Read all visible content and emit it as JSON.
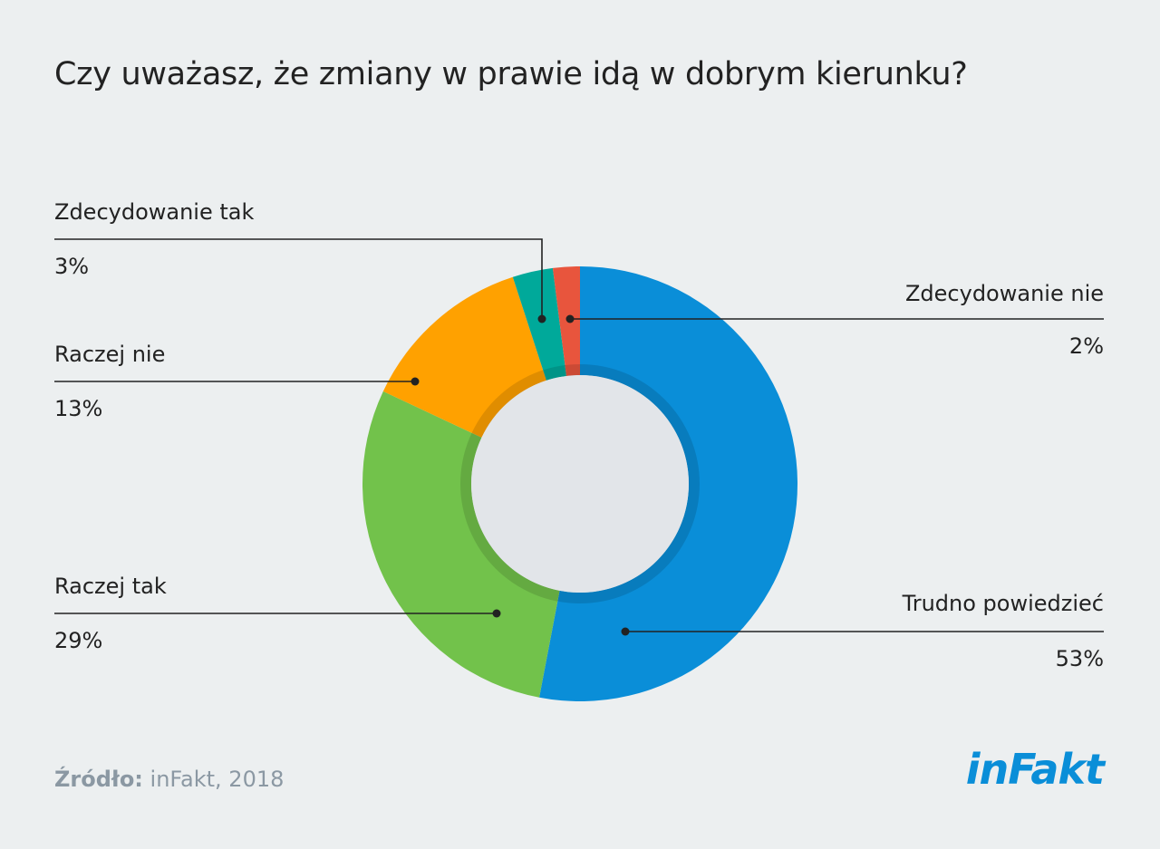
{
  "title": "Czy uważasz, że zmiany w prawie idą w dobrym kierunku?",
  "source": {
    "prefix": "Źródło:",
    "text": "inFakt, 2018"
  },
  "logo": "inFakt",
  "chart_data": {
    "type": "pie",
    "title": "Czy uważasz, że zmiany w prawie idą w dobrym kierunku?",
    "slices": [
      {
        "label": "Trudno powiedzieć",
        "value": 53,
        "display": "53%",
        "color": "#0a8ed8"
      },
      {
        "label": "Raczej tak",
        "value": 29,
        "display": "29%",
        "color": "#72c24b"
      },
      {
        "label": "Raczej nie",
        "value": 13,
        "display": "13%",
        "color": "#ffa100"
      },
      {
        "label": "Zdecydowanie tak",
        "value": 3,
        "display": "3%",
        "color": "#00a99a"
      },
      {
        "label": "Zdecydowanie nie",
        "value": 2,
        "display": "2%",
        "color": "#e8553d"
      }
    ],
    "legend": "callouts"
  }
}
